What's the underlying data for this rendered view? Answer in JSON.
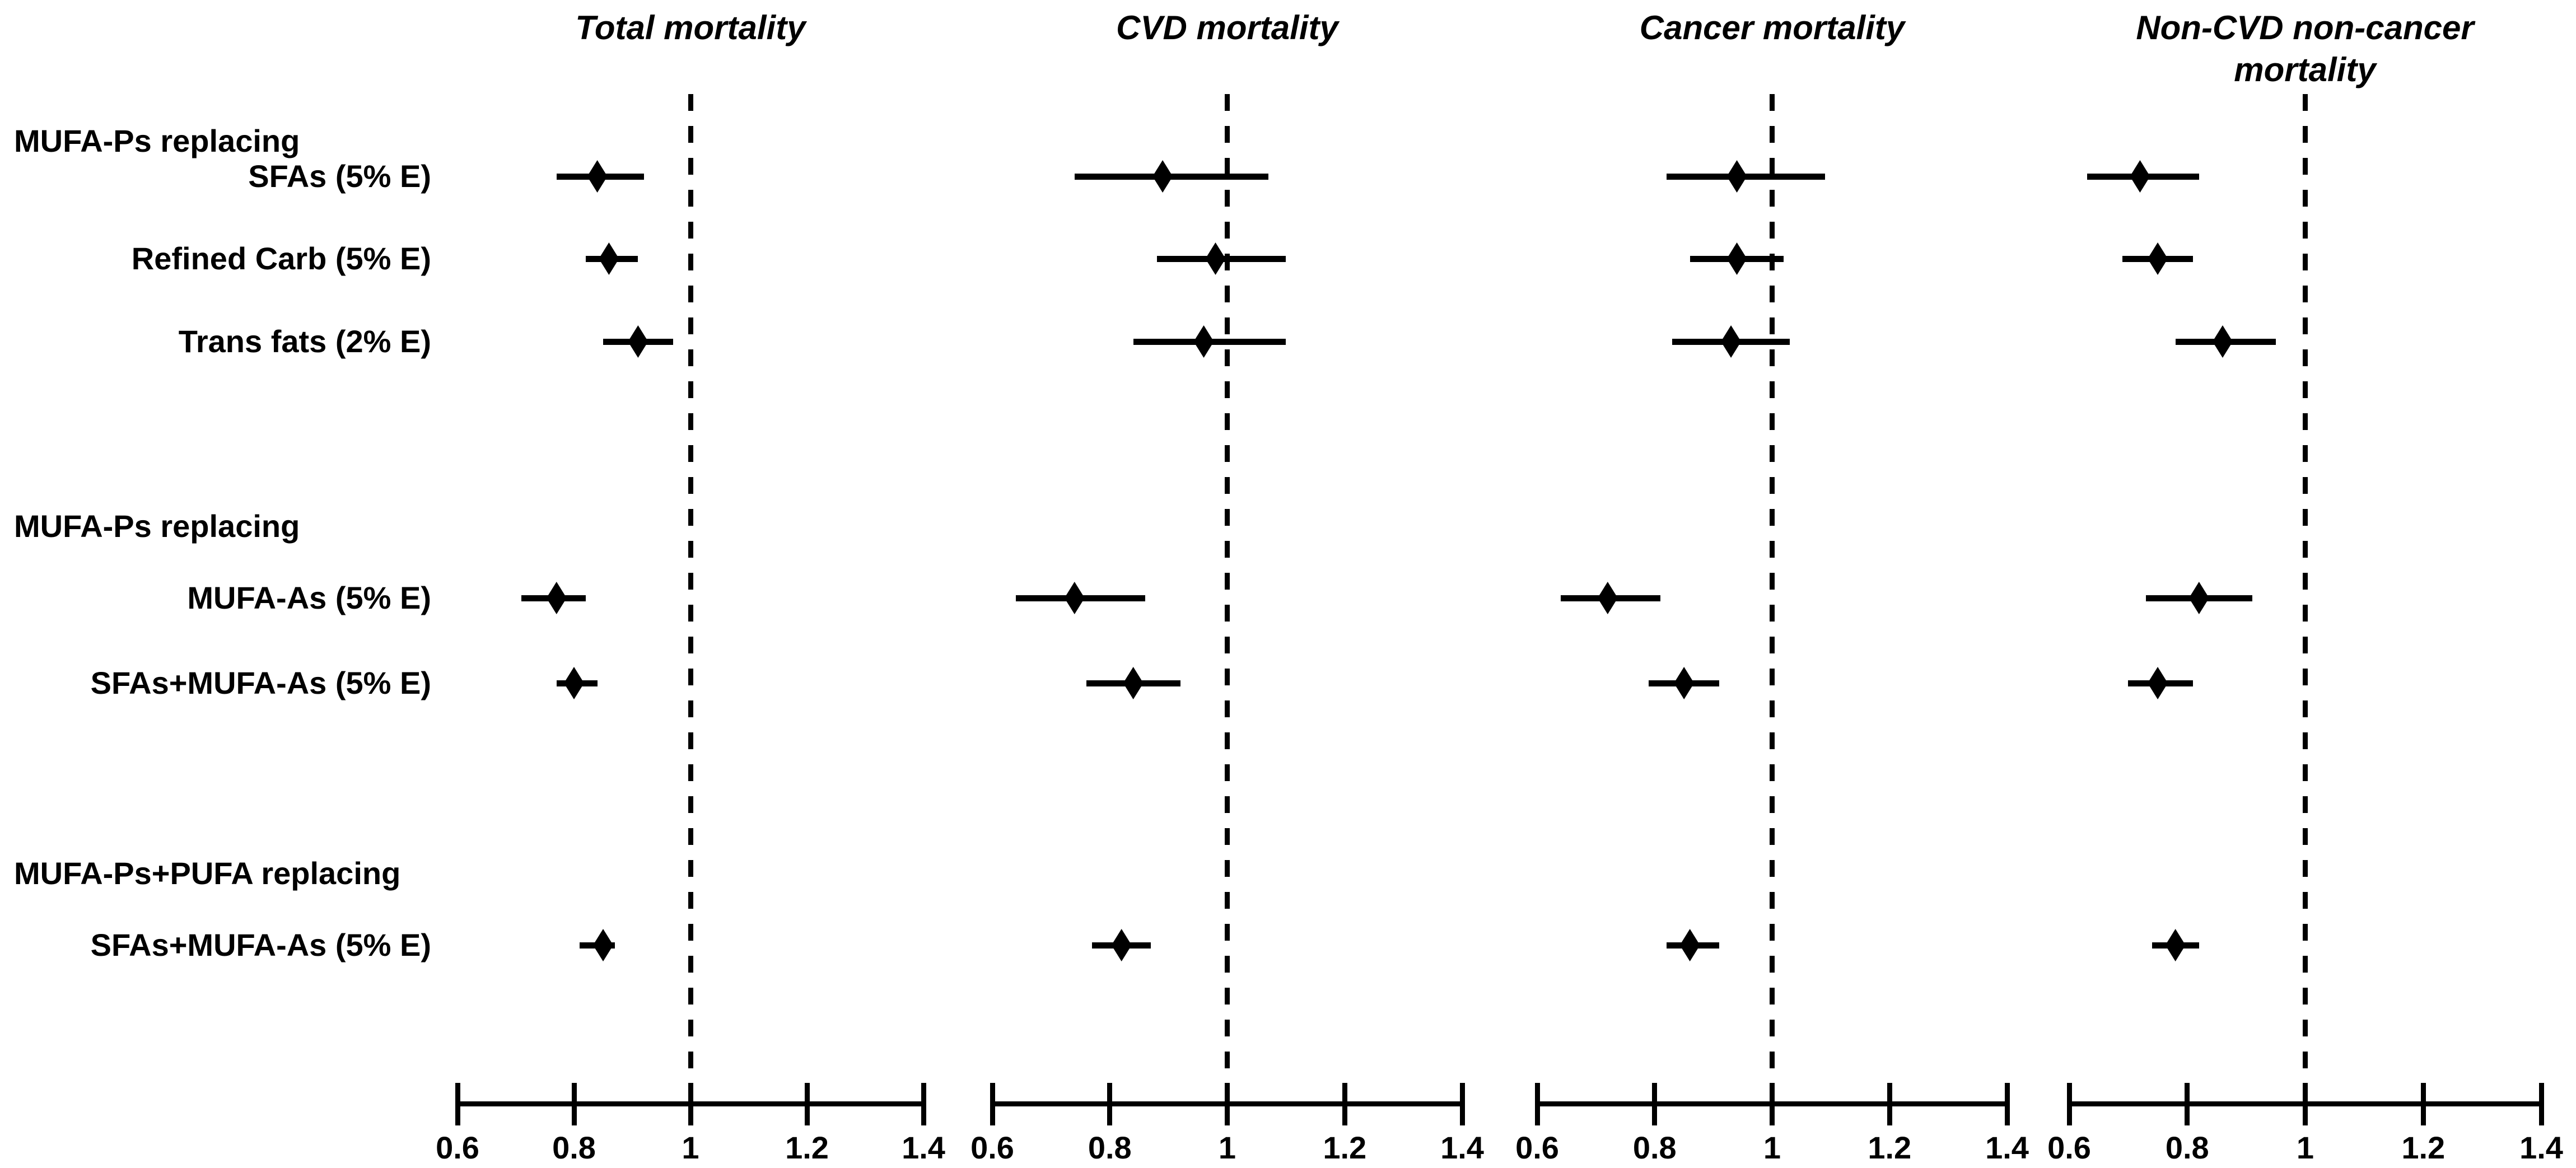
{
  "figure": {
    "background": "#ffffff",
    "ink": "#000000"
  },
  "left_column": {
    "group_headers": [
      {
        "text": "MUFA-Ps replacing"
      },
      {
        "text": "MUFA-Ps replacing"
      },
      {
        "text": "MUFA-Ps+PUFA replacing"
      }
    ],
    "row_labels": [
      "SFAs (5% E)",
      "Refined Carb (5% E)",
      "Trans fats (2% E)",
      "MUFA-As (5% E)",
      "SFAs+MUFA-As (5% E)",
      "SFAs+MUFA-As (5% E)"
    ]
  },
  "chart_data": {
    "type": "forest",
    "x_axis": {
      "range": [
        0.6,
        1.4
      ],
      "ticks": [
        0.6,
        0.8,
        1.0,
        1.2,
        1.4
      ],
      "tick_labels": [
        "0.6",
        "0.8",
        "1",
        "1.2",
        "1.4"
      ],
      "reference_line": 1.0,
      "reference_line_style": "dashed"
    },
    "row_groups": [
      {
        "header": "MUFA-Ps replacing",
        "rows": [
          "SFAs (5% E)",
          "Refined Carb (5% E)",
          "Trans fats (2% E)"
        ]
      },
      {
        "header": "MUFA-Ps replacing",
        "rows": [
          "MUFA-As (5% E)",
          "SFAs+MUFA-As (5% E)"
        ]
      },
      {
        "header": "MUFA-Ps+PUFA replacing",
        "rows": [
          "SFAs+MUFA-As (5% E)"
        ]
      }
    ],
    "panels": [
      {
        "title": "Total mortality",
        "estimates": [
          {
            "row": "SFAs (5% E)",
            "hr": 0.84,
            "lo": 0.77,
            "hi": 0.92
          },
          {
            "row": "Refined Carb (5% E)",
            "hr": 0.86,
            "lo": 0.82,
            "hi": 0.91
          },
          {
            "row": "Trans fats (2% E)",
            "hr": 0.91,
            "lo": 0.85,
            "hi": 0.97
          },
          {
            "row": "MUFA-As (5% E)",
            "hr": 0.77,
            "lo": 0.71,
            "hi": 0.82
          },
          {
            "row": "SFAs+MUFA-As (5% E)",
            "hr": 0.8,
            "lo": 0.77,
            "hi": 0.84
          },
          {
            "row": "SFAs+MUFA-As (5% E)",
            "hr": 0.85,
            "lo": 0.81,
            "hi": 0.87
          }
        ]
      },
      {
        "title": "CVD mortality",
        "estimates": [
          {
            "row": "SFAs (5% E)",
            "hr": 0.89,
            "lo": 0.74,
            "hi": 1.07
          },
          {
            "row": "Refined Carb (5% E)",
            "hr": 0.98,
            "lo": 0.88,
            "hi": 1.1
          },
          {
            "row": "Trans fats (2% E)",
            "hr": 0.96,
            "lo": 0.84,
            "hi": 1.1
          },
          {
            "row": "MUFA-As (5% E)",
            "hr": 0.74,
            "lo": 0.64,
            "hi": 0.86
          },
          {
            "row": "SFAs+MUFA-As (5% E)",
            "hr": 0.84,
            "lo": 0.76,
            "hi": 0.92
          },
          {
            "row": "SFAs+MUFA-As (5% E)",
            "hr": 0.82,
            "lo": 0.77,
            "hi": 0.87
          }
        ]
      },
      {
        "title": "Cancer mortality",
        "estimates": [
          {
            "row": "SFAs (5% E)",
            "hr": 0.94,
            "lo": 0.82,
            "hi": 1.09
          },
          {
            "row": "Refined Carb (5% E)",
            "hr": 0.94,
            "lo": 0.86,
            "hi": 1.02
          },
          {
            "row": "Trans fats (2% E)",
            "hr": 0.93,
            "lo": 0.83,
            "hi": 1.03
          },
          {
            "row": "MUFA-As (5% E)",
            "hr": 0.72,
            "lo": 0.64,
            "hi": 0.81
          },
          {
            "row": "SFAs+MUFA-As (5% E)",
            "hr": 0.85,
            "lo": 0.79,
            "hi": 0.91
          },
          {
            "row": "SFAs+MUFA-As (5% E)",
            "hr": 0.86,
            "lo": 0.82,
            "hi": 0.91
          }
        ]
      },
      {
        "title": "Non-CVD non-cancer mortality",
        "estimates": [
          {
            "row": "SFAs (5% E)",
            "hr": 0.72,
            "lo": 0.63,
            "hi": 0.82
          },
          {
            "row": "Refined Carb (5% E)",
            "hr": 0.75,
            "lo": 0.69,
            "hi": 0.81
          },
          {
            "row": "Trans fats (2% E)",
            "hr": 0.86,
            "lo": 0.78,
            "hi": 0.95
          },
          {
            "row": "MUFA-As (5% E)",
            "hr": 0.82,
            "lo": 0.73,
            "hi": 0.91
          },
          {
            "row": "SFAs+MUFA-As (5% E)",
            "hr": 0.75,
            "lo": 0.7,
            "hi": 0.81
          },
          {
            "row": "SFAs+MUFA-As (5% E)",
            "hr": 0.78,
            "lo": 0.74,
            "hi": 0.82
          }
        ]
      }
    ]
  }
}
